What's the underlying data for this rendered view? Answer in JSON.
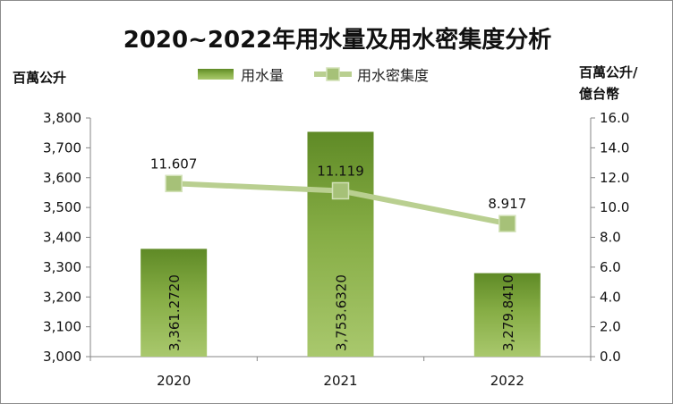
{
  "chart_data": {
    "type": "bar",
    "title": "2020~2022年用水量及用水密集度分析",
    "categories": [
      "2020",
      "2021",
      "2022"
    ],
    "series": [
      {
        "name": "用水量",
        "kind": "bar",
        "axis": "left",
        "values": [
          3361.272,
          3753.632,
          3279.841
        ],
        "labels": [
          "3,361.2720",
          "3,753.6320",
          "3,279.8410"
        ],
        "color": "#7aa33a"
      },
      {
        "name": "用水密集度",
        "kind": "line",
        "axis": "right",
        "values": [
          11.607,
          11.119,
          8.917
        ],
        "labels": [
          "11.607",
          "11.119",
          "8.917"
        ],
        "color": "#b9cf90"
      }
    ],
    "ylabel_left": "百萬公升",
    "ylabel_right_line1": "百萬公升/",
    "ylabel_right_line2": "億台幣",
    "ylim_left": [
      3000,
      3800
    ],
    "yticks_left": [
      "3,000",
      "3,100",
      "3,200",
      "3,300",
      "3,400",
      "3,500",
      "3,600",
      "3,700",
      "3,800"
    ],
    "ylim_right": [
      0,
      16
    ],
    "yticks_right": [
      "0.0",
      "2.0",
      "4.0",
      "6.0",
      "8.0",
      "10.0",
      "12.0",
      "14.0",
      "16.0"
    ],
    "legend_position": "top",
    "grid": false
  }
}
